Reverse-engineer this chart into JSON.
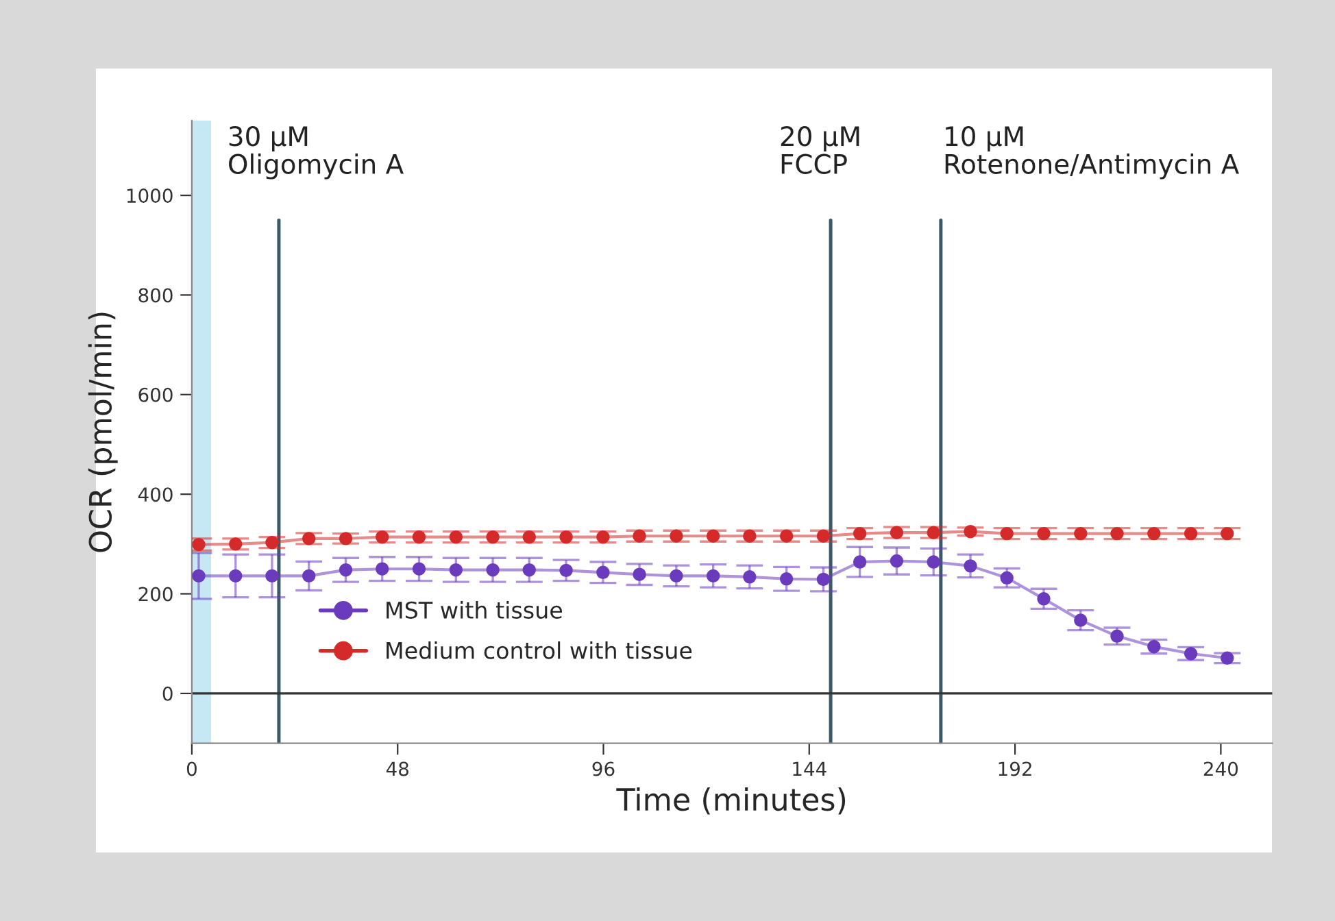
{
  "chart_data": {
    "type": "line",
    "xlabel": "Time (minutes)",
    "ylabel": "OCR (pmol/min)",
    "x": [
      1.6,
      10.2,
      18.7,
      27.3,
      35.9,
      44.4,
      53.0,
      61.6,
      70.2,
      78.7,
      87.3,
      95.9,
      104.4,
      113.0,
      121.6,
      130.1,
      138.7,
      147.3,
      155.8,
      164.4,
      173.0,
      181.6,
      190.1,
      198.7,
      207.3,
      215.8,
      224.4,
      233.0,
      241.5
    ],
    "series": [
      {
        "name": "MST with tissue",
        "color": "#6a3bbd",
        "values": [
          236,
          236,
          236,
          236,
          248,
          250,
          250,
          248,
          248,
          248,
          247,
          243,
          239,
          236,
          236,
          234,
          230,
          229,
          264,
          266,
          264,
          256,
          232,
          190,
          147,
          115,
          94,
          80,
          71
        ],
        "errors": [
          46,
          43,
          43,
          29,
          24,
          24,
          24,
          24,
          24,
          24,
          21,
          21,
          21,
          21,
          23,
          23,
          24,
          24,
          30,
          27,
          27,
          23,
          19,
          20,
          20,
          17,
          14,
          13,
          10
        ]
      },
      {
        "name": "Medium control with tissue",
        "color": "#d42a2a",
        "values": [
          299,
          300,
          303,
          311,
          311,
          314,
          314,
          314,
          314,
          314,
          314,
          314,
          316,
          316,
          316,
          316,
          316,
          316,
          321,
          323,
          323,
          325,
          321,
          321,
          321,
          321,
          321,
          321,
          321
        ],
        "errors": [
          12,
          11,
          11,
          11,
          10,
          11,
          11,
          11,
          11,
          11,
          11,
          11,
          11,
          11,
          11,
          11,
          11,
          11,
          11,
          11,
          11,
          8,
          11,
          11,
          11,
          11,
          11,
          11,
          11
        ]
      }
    ],
    "xlim": [
      0,
      252
    ],
    "xticks": [
      0,
      48,
      96,
      144,
      192,
      240
    ],
    "ylim": [
      -100,
      1150
    ],
    "yticks": [
      0,
      200,
      400,
      600,
      800,
      1000
    ],
    "ref_lines": [
      {
        "axis": "x",
        "value": 20.3,
        "label": "30 µM\nOligomycin A",
        "color": "#3d5866"
      },
      {
        "axis": "x",
        "value": 149,
        "label": "20 µM\nFCCP",
        "color": "#3d5866"
      },
      {
        "axis": "x",
        "value": 174.7,
        "label": "10 µM\nRotenone/Antimycin A",
        "color": "#3d5866"
      },
      {
        "axis": "y",
        "value": 0,
        "color": "#333333"
      }
    ],
    "bands": [
      {
        "axis": "x",
        "from": 0,
        "to": 4.5,
        "color": "#c6e7f4"
      }
    ],
    "marker": "circle",
    "line_style": "solid",
    "grid": false,
    "legend": "bottom left"
  }
}
